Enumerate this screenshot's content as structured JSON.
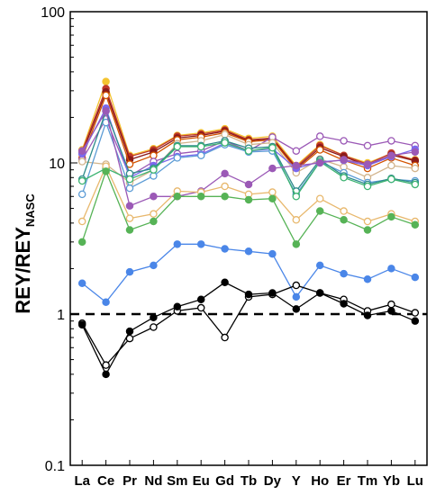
{
  "chart_data": {
    "type": "line",
    "title": "",
    "xlabel": "",
    "ylabel": "REY/REY",
    "ylabel_subscript": "NASC",
    "yscale": "log",
    "ylim": [
      0.1,
      100
    ],
    "yticks": [
      "0.1",
      "1",
      "10",
      "100"
    ],
    "categories": [
      "La",
      "Ce",
      "Pr",
      "Nd",
      "Sm",
      "Eu",
      "Gd",
      "Tb",
      "Dy",
      "Y",
      "Ho",
      "Er",
      "Tm",
      "Yb",
      "Lu"
    ],
    "reference_line": {
      "y": 1,
      "style": "dashed",
      "color": "#000000"
    },
    "series": [
      {
        "color": "#f4c430",
        "filled": true,
        "values": [
          12.2,
          34.5,
          11.2,
          12.4,
          15.2,
          15.8,
          16.8,
          14.5,
          15.0,
          9.6,
          13.2,
          11.2,
          10.0,
          11.5,
          10.5
        ]
      },
      {
        "color": "#c0392b",
        "filled": true,
        "values": [
          12.0,
          31.0,
          11.0,
          12.2,
          15.0,
          15.5,
          16.5,
          14.2,
          14.6,
          9.4,
          13.0,
          11.2,
          9.8,
          11.6,
          10.4
        ]
      },
      {
        "color": "#8b1a1a",
        "filled": true,
        "values": [
          11.5,
          29.5,
          10.5,
          11.8,
          14.6,
          15.2,
          16.2,
          14.0,
          14.5,
          9.2,
          12.6,
          11.0,
          9.6,
          11.3,
          10.3
        ]
      },
      {
        "color": "#d35400",
        "filled": false,
        "values": [
          10.8,
          28.0,
          9.8,
          11.2,
          14.2,
          14.8,
          15.8,
          13.8,
          14.2,
          9.0,
          12.2,
          10.4,
          9.2,
          10.8,
          9.6
        ]
      },
      {
        "color": "#9b59b6",
        "filled": false,
        "values": [
          10.5,
          19.5,
          8.2,
          10.2,
          11.5,
          12.0,
          14.0,
          12.0,
          14.8,
          12.0,
          15.0,
          14.0,
          13.0,
          14.0,
          13.0
        ]
      },
      {
        "color": "#d2b48c",
        "filled": false,
        "values": [
          10.2,
          9.8,
          7.4,
          9.0,
          13.4,
          14.0,
          15.4,
          13.2,
          13.6,
          8.6,
          10.6,
          9.4,
          8.0,
          9.6,
          9.2
        ]
      },
      {
        "color": "#7b68ee",
        "filled": true,
        "values": [
          11.5,
          23.0,
          8.0,
          9.6,
          11.0,
          11.4,
          13.5,
          12.0,
          12.4,
          9.2,
          10.2,
          10.4,
          9.6,
          11.0,
          12.3
        ]
      },
      {
        "color": "#5b9bd5",
        "filled": false,
        "values": [
          6.2,
          18.5,
          6.8,
          8.2,
          10.8,
          11.2,
          13.2,
          11.8,
          12.0,
          6.2,
          10.2,
          8.6,
          7.4,
          7.8,
          7.6
        ]
      },
      {
        "color": "#2e8b8b",
        "filled": false,
        "values": [
          7.8,
          22.0,
          8.5,
          9.2,
          13.0,
          13.0,
          14.0,
          12.5,
          12.8,
          6.5,
          10.5,
          8.2,
          7.2,
          7.9,
          7.4
        ]
      },
      {
        "color": "#3cb371",
        "filled": false,
        "values": [
          7.6,
          9.2,
          7.8,
          9.0,
          12.8,
          12.8,
          13.6,
          12.0,
          12.6,
          6.0,
          10.2,
          8.0,
          7.0,
          7.8,
          7.2
        ]
      },
      {
        "color": "#9b59b6",
        "filled": true,
        "values": [
          12.0,
          22.0,
          5.2,
          6.0,
          6.0,
          6.5,
          8.5,
          7.2,
          9.2,
          9.6,
          10.0,
          10.5,
          9.8,
          11.2,
          11.8
        ]
      },
      {
        "color": "#e8b86d",
        "filled": false,
        "values": [
          4.1,
          9.5,
          4.3,
          4.6,
          6.5,
          6.4,
          7.0,
          6.2,
          6.4,
          4.2,
          5.8,
          4.8,
          4.1,
          4.6,
          4.1
        ]
      },
      {
        "color": "#56b356",
        "filled": true,
        "values": [
          3.0,
          8.8,
          3.6,
          4.1,
          6.0,
          6.0,
          6.0,
          5.7,
          5.8,
          2.9,
          4.8,
          4.2,
          3.6,
          4.4,
          3.9
        ]
      },
      {
        "color": "#4a86e8",
        "filled": true,
        "values": [
          1.6,
          1.2,
          1.9,
          2.1,
          2.9,
          2.9,
          2.7,
          2.6,
          2.5,
          1.3,
          2.1,
          1.85,
          1.7,
          2.0,
          1.75
        ]
      },
      {
        "color": "#000000",
        "filled": false,
        "values": [
          0.87,
          0.46,
          0.69,
          0.82,
          1.05,
          1.1,
          0.7,
          1.3,
          1.35,
          1.55,
          1.38,
          1.25,
          1.05,
          1.16,
          1.02
        ]
      },
      {
        "color": "#000000",
        "filled": true,
        "values": [
          0.85,
          0.4,
          0.77,
          0.95,
          1.12,
          1.25,
          1.62,
          1.35,
          1.38,
          1.08,
          1.38,
          1.17,
          0.98,
          1.05,
          0.9
        ]
      }
    ]
  }
}
